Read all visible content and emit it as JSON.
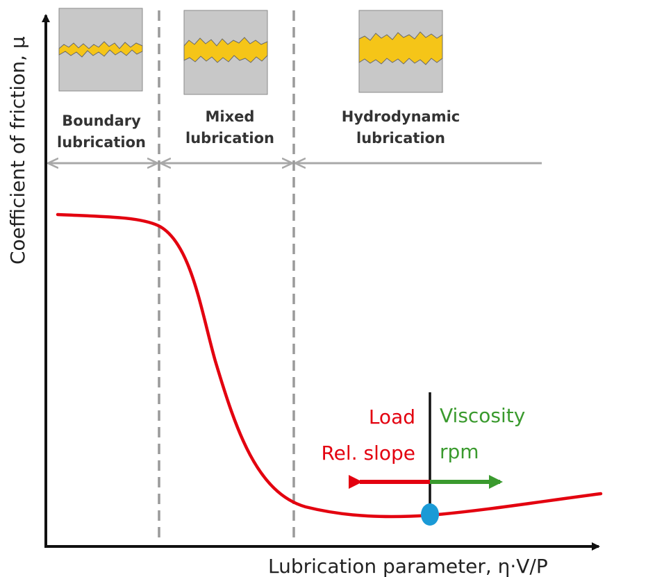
{
  "axes": {
    "x_label": "Lubrication parameter, η·V/P",
    "y_label": "Coefficient of friction, μ"
  },
  "regimes": [
    {
      "line1": "Boundary",
      "line2": "lubrication"
    },
    {
      "line1": "Mixed",
      "line2": "lubrication"
    },
    {
      "line1": "Hydrodynamic",
      "line2": "lubrication"
    }
  ],
  "effects": {
    "left_1": "Load",
    "left_2": "Rel. slope",
    "right_1": "Viscosity",
    "right_2": "rpm"
  },
  "colors": {
    "curve": "#e3000f",
    "increase_arrow": "#3a9a2e",
    "operating_point": "#1a9ad6",
    "lubricant_film": "#f5c518",
    "surface": "#c8c8c8",
    "divider": "#9a9a9a"
  }
}
